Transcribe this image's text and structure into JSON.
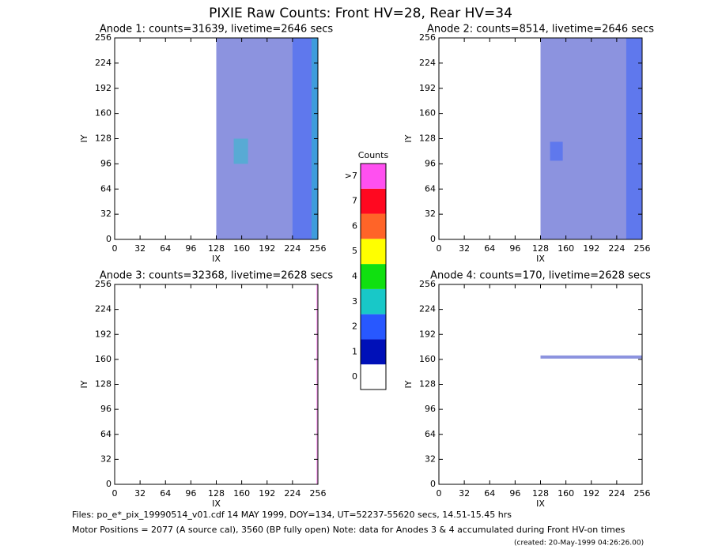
{
  "page": {
    "title": "PIXIE Raw Counts:  Front HV=28, Rear HV=34",
    "footer": [
      "Files: po_e*_pix_19990514_v01.cdf    14 MAY 1999, DOY=134, UT=52237-55620 secs, 14.51-15.45 hrs",
      "Motor Positions = 2077 (A source cal), 3560 (BP fully open)    Note: data for Anodes 3 & 4 accumulated during Front HV-on times",
      "(created: 20-May-1999 04:26:26.00)"
    ]
  },
  "chart_data": [
    {
      "type": "heatmap",
      "title": "Anode 1: counts=31639, livetime=2646 secs",
      "xlabel": "IX",
      "ylabel": "IY",
      "xlim": [
        0,
        256
      ],
      "ylim": [
        0,
        256
      ],
      "xticks": [
        0,
        32,
        64,
        96,
        128,
        160,
        192,
        224,
        256
      ],
      "yticks": [
        0,
        32,
        64,
        96,
        128,
        160,
        192,
        224,
        256
      ],
      "regions": [
        {
          "x": [
            128,
            256
          ],
          "y": [
            0,
            256
          ],
          "value": 1
        },
        {
          "x": [
            224,
            256
          ],
          "y": [
            0,
            256
          ],
          "value": 2
        },
        {
          "x": [
            150,
            168
          ],
          "y": [
            96,
            128
          ],
          "value": 3
        },
        {
          "x": [
            248,
            256
          ],
          "y": [
            0,
            256
          ],
          "value": 3
        }
      ]
    },
    {
      "type": "heatmap",
      "title": "Anode 2: counts=8514, livetime=2646 secs",
      "xlabel": "IX",
      "ylabel": "IY",
      "xlim": [
        0,
        256
      ],
      "ylim": [
        0,
        256
      ],
      "xticks": [
        0,
        32,
        64,
        96,
        128,
        160,
        192,
        224,
        256
      ],
      "yticks": [
        0,
        32,
        64,
        96,
        128,
        160,
        192,
        224,
        256
      ],
      "regions": [
        {
          "x": [
            128,
            256
          ],
          "y": [
            0,
            256
          ],
          "value": 1
        },
        {
          "x": [
            236,
            256
          ],
          "y": [
            0,
            256
          ],
          "value": 2
        },
        {
          "x": [
            140,
            156
          ],
          "y": [
            100,
            124
          ],
          "value": 2
        }
      ]
    },
    {
      "type": "heatmap",
      "title": "Anode 3: counts=32368, livetime=2628 secs",
      "xlabel": "IX",
      "ylabel": "IY",
      "xlim": [
        0,
        256
      ],
      "ylim": [
        0,
        256
      ],
      "xticks": [
        0,
        32,
        64,
        96,
        128,
        160,
        192,
        224,
        256
      ],
      "yticks": [
        0,
        32,
        64,
        96,
        128,
        160,
        192,
        224,
        256
      ],
      "regions": [
        {
          "x": [
            254,
            256
          ],
          "y": [
            0,
            256
          ],
          "value": 8
        }
      ]
    },
    {
      "type": "heatmap",
      "title": "Anode 4: counts=170, livetime=2628 secs",
      "xlabel": "IX",
      "ylabel": "IY",
      "xlim": [
        0,
        256
      ],
      "ylim": [
        0,
        256
      ],
      "xticks": [
        0,
        32,
        64,
        96,
        128,
        160,
        192,
        224,
        256
      ],
      "yticks": [
        0,
        32,
        64,
        96,
        128,
        160,
        192,
        224,
        256
      ],
      "regions": [
        {
          "x": [
            128,
            256
          ],
          "y": [
            161,
            165
          ],
          "value": 1
        }
      ]
    },
    {
      "type": "colorbar",
      "title": "Counts",
      "levels": [
        0,
        1,
        2,
        3,
        4,
        5,
        6,
        7,
        {
          "value": 8,
          "label": ">7"
        }
      ],
      "colors": [
        "#ffffff",
        "#0010b8",
        "#2858ff",
        "#18c8c8",
        "#10e010",
        "#ffff00",
        "#ff6428",
        "#ff0820",
        "#ff50f0"
      ]
    }
  ]
}
